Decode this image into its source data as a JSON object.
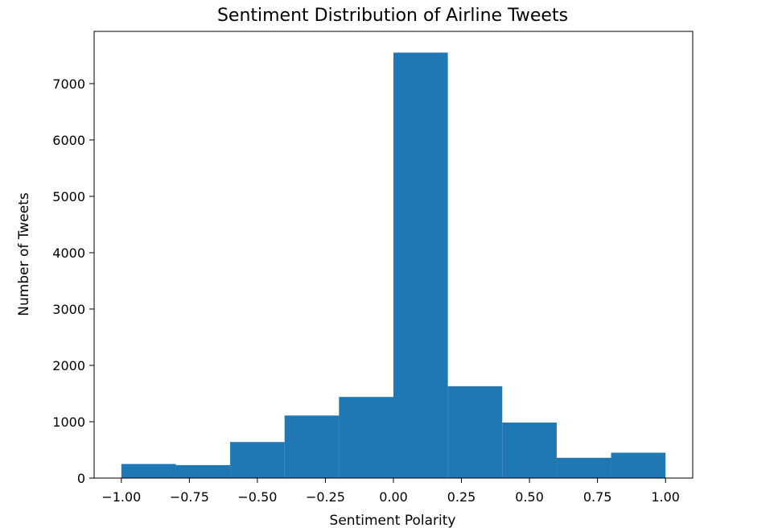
{
  "chart_data": {
    "type": "bar",
    "title": "Sentiment Distribution of Airline Tweets",
    "xlabel": "Sentiment Polarity",
    "ylabel": "Number of Tweets",
    "bins": [
      {
        "x0": -1.0,
        "x1": -0.8,
        "count": 250
      },
      {
        "x0": -0.8,
        "x1": -0.6,
        "count": 230
      },
      {
        "x0": -0.6,
        "x1": -0.4,
        "count": 640
      },
      {
        "x0": -0.4,
        "x1": -0.2,
        "count": 1110
      },
      {
        "x0": -0.2,
        "x1": 0.0,
        "count": 1440
      },
      {
        "x0": 0.0,
        "x1": 0.2,
        "count": 7550
      },
      {
        "x0": 0.2,
        "x1": 0.4,
        "count": 1630
      },
      {
        "x0": 0.4,
        "x1": 0.6,
        "count": 985
      },
      {
        "x0": 0.6,
        "x1": 0.8,
        "count": 360
      },
      {
        "x0": 0.8,
        "x1": 1.0,
        "count": 450
      }
    ],
    "x_ticks": [
      -1.0,
      -0.75,
      -0.5,
      -0.25,
      0.0,
      0.25,
      0.5,
      0.75,
      1.0
    ],
    "x_tick_labels": [
      "−1.00",
      "−0.75",
      "−0.50",
      "−0.25",
      "0.00",
      "0.25",
      "0.50",
      "0.75",
      "1.00"
    ],
    "y_ticks": [
      0,
      1000,
      2000,
      3000,
      4000,
      5000,
      6000,
      7000
    ],
    "y_tick_labels": [
      "0",
      "1000",
      "2000",
      "3000",
      "4000",
      "5000",
      "6000",
      "7000"
    ],
    "xlim": [
      -1.1,
      1.1
    ],
    "ylim": [
      0,
      7927
    ],
    "grid": false,
    "bar_color": "#1f77b4"
  }
}
